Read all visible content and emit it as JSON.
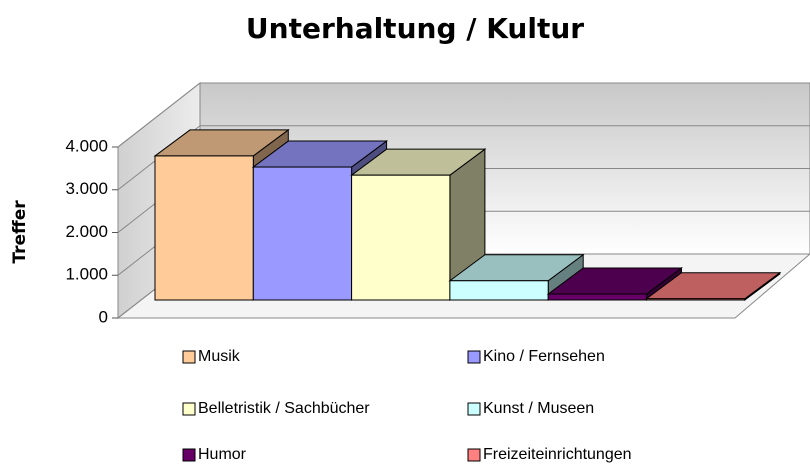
{
  "chart_data": {
    "type": "bar3d",
    "title": "Unterhaltung / Kultur",
    "y_label": "Treffer",
    "categories": [
      "Musik",
      "Kino / Fernsehen",
      "Belletristik / Sachbücher",
      "Kunst / Museen",
      "Humor",
      "Freizeiteinrichtungen"
    ],
    "values": [
      3370,
      3110,
      2920,
      450,
      140,
      30
    ],
    "colors": [
      "#ffcc99",
      "#9999ff",
      "#ffffcc",
      "#ccffff",
      "#660066",
      "#ff8080"
    ],
    "ylim": [
      0,
      4000
    ],
    "yticks": [
      0,
      {
        "value": 1000,
        "label": "1.000"
      },
      {
        "value": 2000,
        "label": "2.000"
      },
      {
        "value": 3000,
        "label": "3.000"
      },
      {
        "value": 4000,
        "label": "4.000"
      }
    ],
    "grid": true,
    "legend": "bottom"
  }
}
